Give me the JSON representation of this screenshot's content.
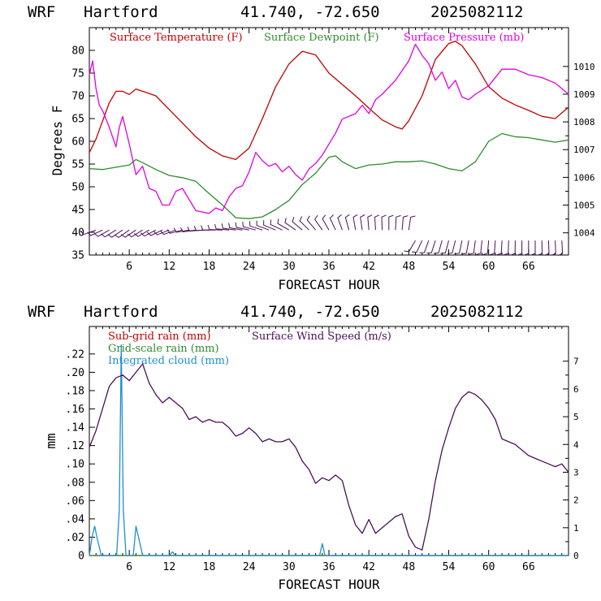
{
  "chart_data": [
    {
      "type": "line",
      "title": {
        "model": "WRF",
        "site": "Hartford",
        "coords": "41.740, -72.650",
        "run": "2025082112"
      },
      "xlabel": "FORECAST HOUR",
      "ylabel": "Degrees F",
      "xlim": [
        0,
        72
      ],
      "ylim": [
        35,
        85
      ],
      "y2lim": [
        1003.2,
        1011.4
      ],
      "x_ticks": [
        "6",
        "12",
        "18",
        "24",
        "30",
        "36",
        "42",
        "48",
        "54",
        "60",
        "66"
      ],
      "y_ticks": [
        "35",
        "40",
        "45",
        "50",
        "55",
        "60",
        "65",
        "70",
        "75",
        "80"
      ],
      "y2_ticks": [
        "1004",
        "1005",
        "1006",
        "1007",
        "1008",
        "1009",
        "1010"
      ],
      "grid": false,
      "legend_position": "top",
      "series": [
        {
          "name": "Surface Temperature (F)",
          "color": "#c00000",
          "axis": "left",
          "x": [
            0,
            1,
            2,
            3,
            4,
            5,
            6,
            7,
            8,
            10,
            12,
            14,
            16,
            18,
            20,
            22,
            24,
            26,
            28,
            30,
            32,
            34,
            36,
            38,
            40,
            42,
            44,
            46,
            47,
            48,
            50,
            52,
            54,
            55,
            56,
            58,
            60,
            62,
            64,
            66,
            68,
            70,
            72
          ],
          "y": [
            57.5,
            60.5,
            64.5,
            68.5,
            71,
            71,
            70.3,
            71.5,
            71,
            70,
            67,
            64,
            61,
            58.5,
            56.8,
            56,
            58.5,
            65,
            72,
            77,
            79.8,
            79,
            75,
            72.5,
            70,
            67.3,
            64.7,
            63.2,
            62.7,
            64.5,
            70,
            78,
            81.5,
            82,
            81,
            77,
            72,
            69.5,
            68,
            66.8,
            65.5,
            65,
            67.5
          ]
        },
        {
          "name": "Surface Dewpoint (F)",
          "color": "#2e8b2e",
          "axis": "left",
          "x": [
            0,
            2,
            4,
            6,
            7,
            8,
            10,
            12,
            14,
            16,
            18,
            20,
            22,
            24,
            26,
            28,
            30,
            32,
            34,
            36,
            37,
            38,
            40,
            42,
            44,
            46,
            48,
            50,
            52,
            54,
            56,
            58,
            60,
            62,
            64,
            66,
            68,
            70,
            72
          ],
          "y": [
            54,
            53.8,
            54.3,
            54.8,
            56,
            55.3,
            53.8,
            52.5,
            52,
            51.2,
            48.5,
            46,
            43.2,
            43,
            43.4,
            45,
            47,
            50.5,
            53,
            56.5,
            56.8,
            55.5,
            54,
            54.8,
            55,
            55.5,
            55.5,
            55.7,
            55,
            54,
            53.5,
            55.5,
            60,
            61.7,
            61,
            60.8,
            60.3,
            59.8,
            60.3
          ]
        },
        {
          "name": "Surface Pressure (mb)",
          "color": "#e000e0",
          "axis": "right",
          "x": [
            0,
            0.5,
            1,
            1.5,
            2,
            3,
            4,
            4.5,
            5,
            6,
            7,
            8,
            9,
            10,
            11,
            12,
            13,
            14,
            15,
            16,
            18,
            19,
            20,
            21,
            22,
            23,
            24,
            25,
            26,
            27,
            28,
            29,
            30,
            31,
            32,
            33,
            34,
            35,
            36,
            37,
            38,
            40,
            41,
            42,
            43,
            44,
            46,
            48,
            49,
            50,
            51,
            52,
            53,
            54,
            55,
            56,
            57,
            58,
            60,
            62,
            64,
            66,
            68,
            70,
            71,
            72
          ],
          "y": [
            1009.7,
            1010.2,
            1009.2,
            1008.6,
            1008.4,
            1007.8,
            1007.1,
            1007.8,
            1008.2,
            1007.2,
            1006.1,
            1006.4,
            1005.6,
            1005.5,
            1005.0,
            1005.0,
            1005.5,
            1005.6,
            1005.2,
            1004.8,
            1004.7,
            1004.9,
            1004.8,
            1005.3,
            1005.6,
            1005.7,
            1006.2,
            1006.9,
            1006.6,
            1006.4,
            1006.5,
            1006.2,
            1006.4,
            1006.1,
            1005.9,
            1006.3,
            1006.5,
            1006.8,
            1007.2,
            1007.6,
            1008.1,
            1008.3,
            1008.6,
            1008.3,
            1008.8,
            1009.0,
            1009.5,
            1010.2,
            1010.8,
            1010.4,
            1010.1,
            1009.5,
            1009.8,
            1009.2,
            1009.5,
            1008.9,
            1008.8,
            1009.0,
            1009.3,
            1009.9,
            1009.9,
            1009.7,
            1009.6,
            1009.4,
            1009.2,
            1009.0
          ]
        }
      ]
    },
    {
      "type": "line",
      "title": {
        "model": "WRF",
        "site": "Hartford",
        "coords": "41.740, -72.650",
        "run": "2025082112"
      },
      "xlabel": "FORECAST HOUR",
      "ylabel": "mm",
      "xlim": [
        0,
        72
      ],
      "ylim": [
        0,
        0.25
      ],
      "y2lim": [
        0,
        8.25
      ],
      "x_ticks": [
        "6",
        "12",
        "18",
        "24",
        "30",
        "36",
        "42",
        "48",
        "54",
        "60",
        "66"
      ],
      "y_ticks": [
        "0",
        ".02",
        ".04",
        ".06",
        ".08",
        ".10",
        ".12",
        ".14",
        ".16",
        ".18",
        ".20",
        ".22"
      ],
      "y2_ticks": [
        "0",
        "1",
        "2",
        "3",
        "4",
        "5",
        "6",
        "7"
      ],
      "grid": false,
      "legend_position": "top-left",
      "series": [
        {
          "name": "Sub-grid rain (mm)",
          "color": "#c00000",
          "axis": "left",
          "x": [
            0,
            72
          ],
          "y": [
            0,
            0
          ]
        },
        {
          "name": "Grid-scale rain (mm)",
          "color": "#2e8b2e",
          "axis": "left",
          "x": [
            0,
            72
          ],
          "y": [
            0,
            0
          ]
        },
        {
          "name": "Integrated cloud (mm)",
          "color": "#1f8fd0",
          "axis": "left",
          "x": [
            0,
            0.4,
            0.8,
            1.2,
            1.8,
            4.1,
            4.5,
            4.8,
            5.1,
            5.5,
            6.6,
            7.0,
            7.4,
            8.0,
            12.0,
            12.5,
            13.0,
            34.6,
            35.0,
            35.4,
            72
          ],
          "y": [
            0,
            0.02,
            0.032,
            0.018,
            0,
            0,
            0.05,
            0.23,
            0.05,
            0,
            0,
            0.032,
            0.02,
            0,
            0,
            0.004,
            0,
            0,
            0.013,
            0,
            0
          ]
        },
        {
          "name": "Surface Wind Speed (m/s)",
          "color": "#4b0f5a",
          "axis": "right",
          "x": [
            0,
            1,
            2,
            3,
            4,
            5,
            6,
            7,
            8,
            9,
            10,
            11,
            12,
            13,
            14,
            15,
            16,
            17,
            18,
            19,
            20,
            21,
            22,
            23,
            24,
            25,
            26,
            27,
            28,
            29,
            30,
            31,
            32,
            33,
            34,
            35,
            36,
            37,
            38,
            39,
            40,
            41,
            42,
            43,
            44,
            45,
            46,
            47,
            48,
            49,
            50,
            51,
            52,
            53,
            54,
            55,
            56,
            57,
            58,
            59,
            60,
            61,
            62,
            63,
            64,
            65,
            66,
            67,
            68,
            69,
            70,
            71,
            72
          ],
          "y": [
            3.9,
            4.5,
            5.3,
            6.1,
            6.4,
            6.5,
            6.3,
            6.6,
            6.9,
            6.2,
            5.8,
            5.5,
            5.7,
            5.5,
            5.3,
            4.9,
            5.0,
            4.8,
            4.9,
            4.8,
            4.8,
            4.6,
            4.3,
            4.4,
            4.6,
            4.4,
            4.1,
            4.2,
            4.1,
            4.1,
            4.2,
            3.9,
            3.4,
            3.1,
            2.6,
            2.8,
            2.7,
            2.9,
            2.7,
            1.8,
            1.1,
            0.8,
            1.3,
            0.8,
            1.0,
            1.2,
            1.4,
            1.5,
            0.7,
            0.3,
            0.2,
            1.3,
            2.7,
            3.8,
            4.6,
            5.3,
            5.7,
            5.9,
            5.8,
            5.6,
            5.3,
            4.9,
            4.2,
            4.1,
            4.0,
            3.8,
            3.6,
            3.5,
            3.4,
            3.3,
            3.2,
            3.3,
            3.0
          ]
        }
      ]
    }
  ],
  "wind_barbs": {
    "color": "#4b0f5a",
    "level_a_value": 40.5,
    "level_b_value": 38.2,
    "hours_a": [
      1,
      2,
      3,
      4,
      5,
      6,
      7,
      8,
      9,
      10,
      11,
      12,
      13,
      14,
      15,
      16,
      17,
      18,
      19,
      20,
      21,
      22,
      23,
      24,
      25,
      26,
      27,
      28,
      29,
      30,
      31,
      32,
      33,
      34,
      35,
      36,
      37,
      38,
      39,
      40,
      41,
      42,
      43,
      44,
      45,
      46,
      47,
      48
    ],
    "dir_a": [
      250,
      245,
      240,
      238,
      236,
      235,
      236,
      238,
      240,
      242,
      245,
      248,
      250,
      255,
      260,
      262,
      265,
      268,
      270,
      272,
      275,
      278,
      280,
      282,
      285,
      288,
      290,
      292,
      295,
      300,
      305,
      310,
      315,
      320,
      325,
      330,
      335,
      340,
      345,
      350,
      352,
      355,
      357,
      358,
      0,
      3,
      5,
      8
    ],
    "hours_b": [
      49,
      50,
      51,
      52,
      53,
      54,
      55,
      56,
      57,
      58,
      59,
      60,
      61,
      62,
      63,
      64,
      65,
      66,
      67,
      68,
      69,
      70,
      71
    ],
    "dir_b": [
      210,
      205,
      200,
      198,
      196,
      195,
      194,
      192,
      190,
      188,
      186,
      185,
      184,
      183,
      182,
      181,
      180,
      180,
      180,
      179,
      178,
      178,
      177
    ]
  }
}
